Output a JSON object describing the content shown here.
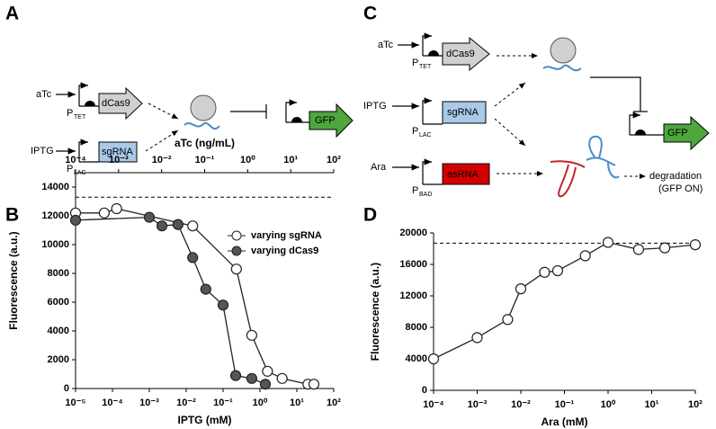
{
  "panel_labels": [
    "A",
    "B",
    "C",
    "D"
  ],
  "diagram_a": {
    "inducers": [
      "aTc",
      "IPTG"
    ],
    "promoters": [
      {
        "p": "P",
        "sub": "TET"
      },
      {
        "p": "P",
        "sub": "LAC"
      }
    ],
    "genes": [
      "dCas9",
      "sgRNA"
    ],
    "reporter": "GFP"
  },
  "diagram_c": {
    "inducers": [
      "aTc",
      "IPTG",
      "Ara"
    ],
    "promoters": [
      {
        "p": "P",
        "sub": "TET"
      },
      {
        "p": "P",
        "sub": "LAC"
      },
      {
        "p": "P",
        "sub": "BAD"
      }
    ],
    "genes": [
      "dCas9",
      "sgRNA",
      "asRNA"
    ],
    "reporter": "GFP",
    "outcome": [
      "degradation",
      "(GFP ON)"
    ]
  },
  "chart_data": [
    {
      "type": "line",
      "xscale": "log",
      "x_label": "IPTG (mM)",
      "x2_label": "aTc (ng/mL)",
      "y_label": "Fluorescence (a.u.)",
      "xlim": [
        1e-05,
        100
      ],
      "xticks": [
        {
          "value": 1e-05,
          "label": "10⁻⁵"
        },
        {
          "value": 0.0001,
          "label": "10⁻⁴"
        },
        {
          "value": 0.001,
          "label": "10⁻³"
        },
        {
          "value": 0.01,
          "label": "10⁻²"
        },
        {
          "value": 0.1,
          "label": "10⁻¹"
        },
        {
          "value": 1,
          "label": "10⁰"
        },
        {
          "value": 10,
          "label": "10¹"
        },
        {
          "value": 100,
          "label": "10²"
        }
      ],
      "x2lim": [
        0.0001,
        100
      ],
      "x2ticks": [
        {
          "value": 0.0001,
          "label": "10⁻⁴"
        },
        {
          "value": 0.001,
          "label": "10⁻³"
        },
        {
          "value": 0.01,
          "label": "10⁻²"
        },
        {
          "value": 0.1,
          "label": "10⁻¹"
        },
        {
          "value": 1,
          "label": "10⁰"
        },
        {
          "value": 10,
          "label": "10¹"
        },
        {
          "value": 100,
          "label": "10²"
        }
      ],
      "ylim": [
        0,
        15000
      ],
      "yticks": [
        0,
        2000,
        4000,
        6000,
        8000,
        10000,
        12000,
        14000
      ],
      "hline": 13300,
      "legend_loc": "upper right",
      "series": [
        {
          "name": "varying sgRNA",
          "color": "#222222",
          "marker_fill": "#ffffff",
          "x": [
            1e-05,
            6e-05,
            0.00013,
            0.015,
            0.23,
            0.6,
            1.6,
            4,
            20,
            29
          ],
          "values": [
            12200,
            12200,
            12500,
            11300,
            8300,
            3700,
            1200,
            700,
            300,
            300
          ]
        },
        {
          "name": "varying dCas9",
          "color": "#222222",
          "marker_fill": "#555555",
          "x": [
            1e-05,
            0.001,
            0.0022,
            0.006,
            0.015,
            0.034,
            0.1,
            0.22,
            0.6,
            1.4
          ],
          "values": [
            11700,
            11900,
            11300,
            11400,
            9100,
            6900,
            5800,
            900,
            700,
            300
          ]
        }
      ]
    },
    {
      "type": "line",
      "xscale": "log",
      "x_label": "Ara (mM)",
      "y_label": "Fluorescence (a.u.)",
      "xlim": [
        0.0001,
        100
      ],
      "xticks": [
        {
          "value": 0.0001,
          "label": "10⁻⁴"
        },
        {
          "value": 0.001,
          "label": "10⁻³"
        },
        {
          "value": 0.01,
          "label": "10⁻²"
        },
        {
          "value": 0.1,
          "label": "10⁻¹"
        },
        {
          "value": 1,
          "label": "10⁰"
        },
        {
          "value": 10,
          "label": "10¹"
        },
        {
          "value": 100,
          "label": "10²"
        }
      ],
      "ylim": [
        0,
        20000
      ],
      "yticks": [
        0,
        4000,
        8000,
        12000,
        16000,
        20000
      ],
      "hline": 18700,
      "series": [
        {
          "color": "#222222",
          "marker_fill": "#ffffff",
          "x": [
            0.0001,
            0.001,
            0.005,
            0.01,
            0.035,
            0.07,
            0.3,
            1,
            5,
            20,
            100
          ],
          "values": [
            4000,
            6700,
            9000,
            12900,
            15000,
            15200,
            17100,
            18800,
            17900,
            18100,
            18500
          ]
        }
      ]
    }
  ]
}
